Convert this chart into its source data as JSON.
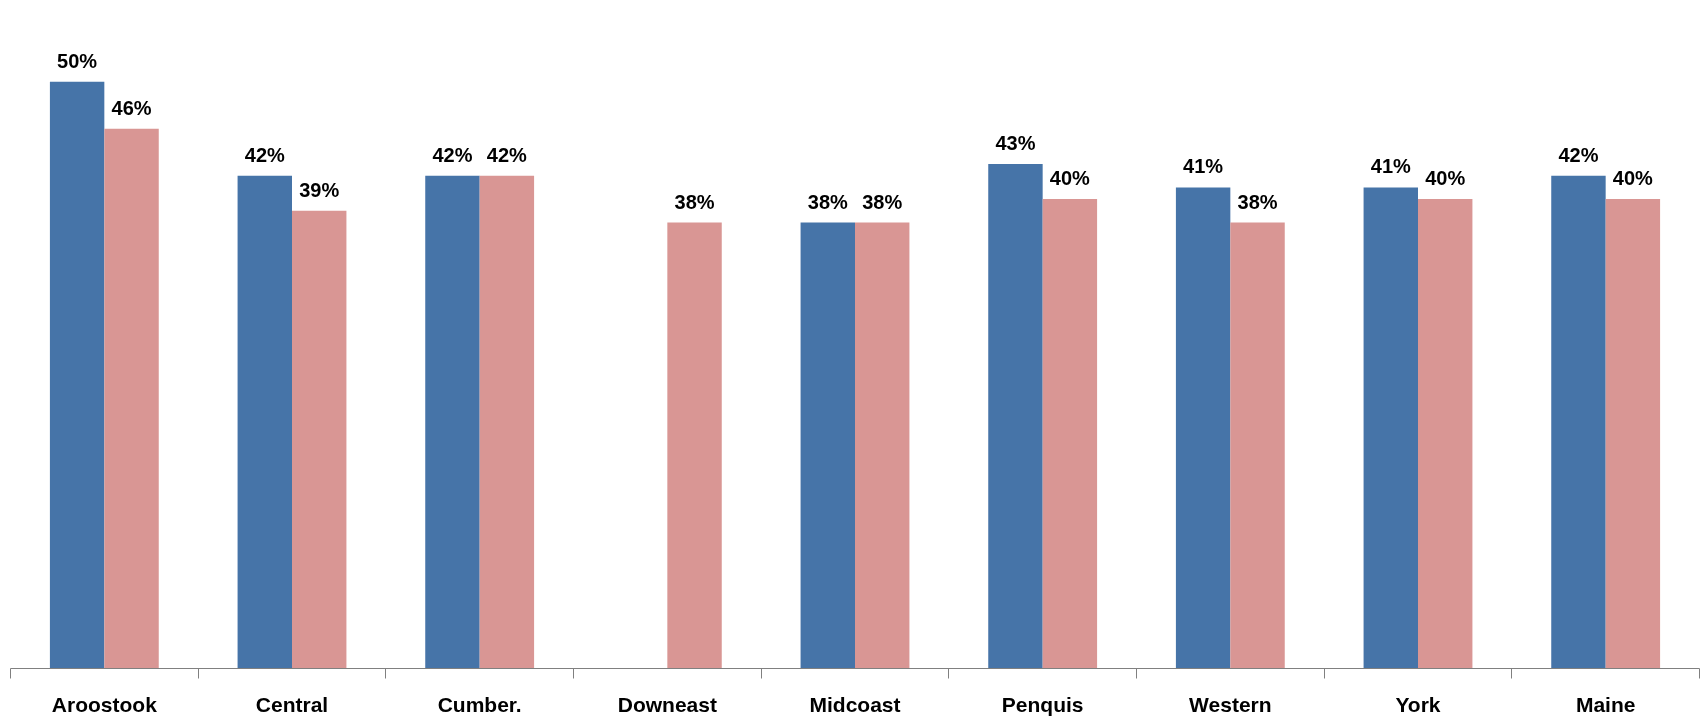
{
  "chart_data": {
    "type": "bar",
    "categories": [
      "Aroostook",
      "Central",
      "Cumber.",
      "Downeast",
      "Midcoast",
      "Penquis",
      "Western",
      "York",
      "Maine"
    ],
    "series": [
      {
        "color": "#4674a8",
        "values": [
          50,
          42,
          42,
          null,
          38,
          43,
          41,
          41,
          42
        ],
        "value_labels": [
          "50%",
          "42%",
          "42%",
          null,
          "38%",
          "43%",
          "41%",
          "41%",
          "42%"
        ]
      },
      {
        "color": "#d99694",
        "values": [
          46,
          39,
          42,
          38,
          38,
          40,
          38,
          40,
          40
        ],
        "value_labels": [
          "46%",
          "39%",
          "42%",
          "38%",
          "38%",
          "40%",
          "38%",
          "40%",
          "40%"
        ]
      }
    ],
    "grid": false
  }
}
